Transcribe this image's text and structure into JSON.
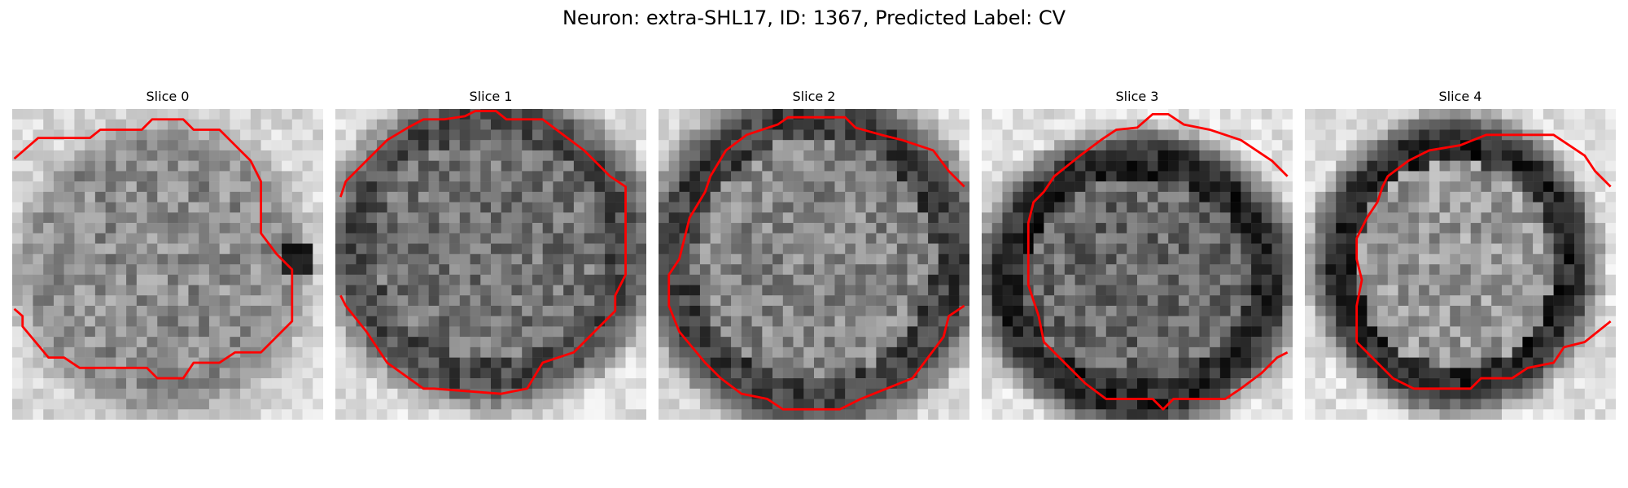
{
  "figure": {
    "title": "Neuron: extra-SHL17, ID: 1367, Predicted Label: CV"
  },
  "panels": [
    {
      "title": "Slice 0"
    },
    {
      "title": "Slice 1"
    },
    {
      "title": "Slice 2"
    },
    {
      "title": "Slice 3"
    },
    {
      "title": "Slice 4"
    }
  ],
  "style": {
    "contour_color": "#ff0000",
    "image_colormap": "grayscale"
  }
}
